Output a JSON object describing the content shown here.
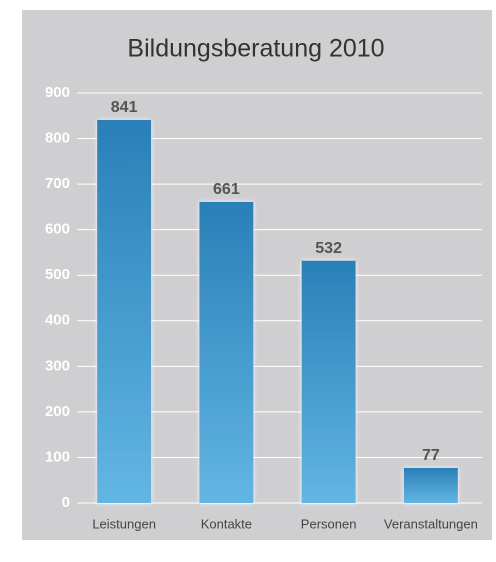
{
  "chart_data": {
    "type": "bar",
    "title": "Bildungsberatung 2010",
    "categories": [
      "Leistungen",
      "Kontakte",
      "Personen",
      "Veranstaltungen"
    ],
    "values": [
      841,
      661,
      532,
      77
    ],
    "color": "#2a7fb8",
    "ylim": [
      0,
      900
    ],
    "yticks": [
      0,
      100,
      200,
      300,
      400,
      500,
      600,
      700,
      800,
      900
    ],
    "grid": true
  }
}
